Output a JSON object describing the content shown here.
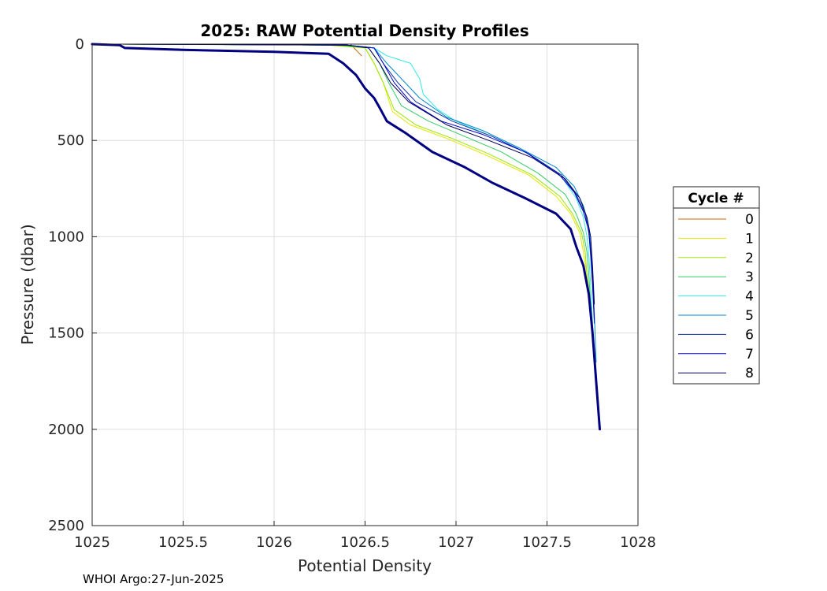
{
  "chart_data": {
    "type": "line",
    "title": "2025: RAW Potential Density Profiles",
    "xlabel": "Potential Density",
    "ylabel": "Pressure (dbar)",
    "xlim": [
      1025,
      1028
    ],
    "ylim": [
      0,
      2500
    ],
    "y_reversed": true,
    "grid": true,
    "x_ticks": [
      1025,
      1025.5,
      1026,
      1026.5,
      1027,
      1027.5,
      1028
    ],
    "x_tick_labels": [
      "1025",
      "1025.5",
      "1026",
      "1026.5",
      "1027",
      "1027.5",
      "1028"
    ],
    "y_ticks": [
      0,
      500,
      1000,
      1500,
      2000,
      2500
    ],
    "y_tick_labels": [
      "0",
      "500",
      "1000",
      "1500",
      "2000",
      "2500"
    ],
    "legend": {
      "title": "Cycle #",
      "placement": "right-outside"
    },
    "series": [
      {
        "name": "0",
        "color": "#cc6600",
        "width": 1,
        "points": [
          [
            1026.42,
            0
          ],
          [
            1026.44,
            20
          ],
          [
            1026.46,
            40
          ],
          [
            1026.48,
            60
          ]
        ]
      },
      {
        "name": "1",
        "color": "#e6e600",
        "width": 1,
        "points": [
          [
            1025.15,
            0
          ],
          [
            1026.3,
            5
          ],
          [
            1026.5,
            20
          ],
          [
            1026.55,
            100
          ],
          [
            1026.6,
            200
          ],
          [
            1026.65,
            350
          ],
          [
            1026.75,
            420
          ],
          [
            1026.95,
            490
          ],
          [
            1027.15,
            570
          ],
          [
            1027.4,
            680
          ],
          [
            1027.55,
            790
          ],
          [
            1027.63,
            880
          ],
          [
            1027.68,
            980
          ],
          [
            1027.7,
            1080
          ],
          [
            1027.72,
            1200
          ],
          [
            1027.74,
            1350
          ],
          [
            1027.75,
            1450
          ]
        ]
      },
      {
        "name": "2",
        "color": "#99e600",
        "width": 1,
        "points": [
          [
            1025.15,
            0
          ],
          [
            1026.3,
            5
          ],
          [
            1026.5,
            20
          ],
          [
            1026.55,
            100
          ],
          [
            1026.6,
            200
          ],
          [
            1026.66,
            340
          ],
          [
            1026.78,
            420
          ],
          [
            1026.98,
            490
          ],
          [
            1027.18,
            570
          ],
          [
            1027.42,
            680
          ],
          [
            1027.57,
            790
          ],
          [
            1027.64,
            880
          ],
          [
            1027.69,
            980
          ],
          [
            1027.71,
            1080
          ],
          [
            1027.72,
            1200
          ],
          [
            1027.74,
            1350
          ],
          [
            1027.75,
            1480
          ]
        ]
      },
      {
        "name": "3",
        "color": "#33cc66",
        "width": 1,
        "points": [
          [
            1025.15,
            0
          ],
          [
            1026.35,
            5
          ],
          [
            1026.52,
            20
          ],
          [
            1026.58,
            100
          ],
          [
            1026.63,
            200
          ],
          [
            1026.7,
            320
          ],
          [
            1026.85,
            400
          ],
          [
            1027.05,
            480
          ],
          [
            1027.25,
            560
          ],
          [
            1027.45,
            670
          ],
          [
            1027.6,
            780
          ],
          [
            1027.66,
            880
          ],
          [
            1027.7,
            980
          ],
          [
            1027.72,
            1080
          ],
          [
            1027.73,
            1200
          ],
          [
            1027.74,
            1350
          ],
          [
            1027.75,
            1480
          ]
        ]
      },
      {
        "name": "4",
        "color": "#33e6e6",
        "width": 1,
        "points": [
          [
            1025.15,
            0
          ],
          [
            1026.4,
            5
          ],
          [
            1026.55,
            20
          ],
          [
            1026.62,
            60
          ],
          [
            1026.75,
            100
          ],
          [
            1026.8,
            180
          ],
          [
            1026.82,
            260
          ],
          [
            1026.9,
            340
          ],
          [
            1027.0,
            400
          ],
          [
            1027.2,
            480
          ],
          [
            1027.4,
            570
          ],
          [
            1027.58,
            690
          ],
          [
            1027.66,
            800
          ],
          [
            1027.7,
            900
          ],
          [
            1027.72,
            1000
          ],
          [
            1027.73,
            1100
          ],
          [
            1027.74,
            1250
          ],
          [
            1027.75,
            1450
          ]
        ]
      },
      {
        "name": "5",
        "color": "#0088cc",
        "width": 1,
        "points": [
          [
            1025.15,
            0
          ],
          [
            1026.4,
            5
          ],
          [
            1026.55,
            20
          ],
          [
            1026.62,
            100
          ],
          [
            1026.7,
            180
          ],
          [
            1026.8,
            280
          ],
          [
            1026.95,
            380
          ],
          [
            1027.15,
            450
          ],
          [
            1027.35,
            540
          ],
          [
            1027.55,
            640
          ],
          [
            1027.65,
            740
          ],
          [
            1027.7,
            840
          ],
          [
            1027.73,
            950
          ],
          [
            1027.74,
            1050
          ],
          [
            1027.75,
            1200
          ],
          [
            1027.76,
            1400
          ],
          [
            1027.77,
            1650
          ]
        ]
      },
      {
        "name": "6",
        "color": "#1133aa",
        "width": 1,
        "points": [
          [
            1025.15,
            0
          ],
          [
            1026.4,
            5
          ],
          [
            1026.55,
            20
          ],
          [
            1026.6,
            100
          ],
          [
            1026.68,
            200
          ],
          [
            1026.78,
            300
          ],
          [
            1026.98,
            400
          ],
          [
            1027.2,
            480
          ],
          [
            1027.4,
            570
          ],
          [
            1027.58,
            680
          ],
          [
            1027.66,
            780
          ],
          [
            1027.71,
            880
          ],
          [
            1027.73,
            980
          ],
          [
            1027.74,
            1100
          ],
          [
            1027.75,
            1250
          ],
          [
            1027.76,
            1450
          ]
        ]
      },
      {
        "name": "7",
        "color": "#0000cc",
        "width": 1,
        "points": [
          [
            1025.15,
            0
          ],
          [
            1026.4,
            5
          ],
          [
            1026.55,
            20
          ],
          [
            1026.6,
            100
          ],
          [
            1026.66,
            200
          ],
          [
            1026.75,
            300
          ],
          [
            1026.92,
            400
          ],
          [
            1027.15,
            470
          ],
          [
            1027.38,
            560
          ],
          [
            1027.56,
            670
          ],
          [
            1027.65,
            770
          ],
          [
            1027.7,
            870
          ],
          [
            1027.73,
            970
          ],
          [
            1027.74,
            1080
          ],
          [
            1027.75,
            1230
          ],
          [
            1027.76,
            1430
          ]
        ]
      },
      {
        "name": "8",
        "color": "#000055",
        "width": 1,
        "points": [
          [
            1025.15,
            0
          ],
          [
            1026.4,
            5
          ],
          [
            1026.52,
            20
          ],
          [
            1026.58,
            100
          ],
          [
            1026.64,
            200
          ],
          [
            1026.74,
            300
          ],
          [
            1026.95,
            420
          ],
          [
            1027.18,
            500
          ],
          [
            1027.42,
            590
          ],
          [
            1027.6,
            700
          ],
          [
            1027.68,
            800
          ],
          [
            1027.72,
            900
          ],
          [
            1027.74,
            1000
          ],
          [
            1027.75,
            1150
          ],
          [
            1027.76,
            1350
          ]
        ]
      },
      {
        "name": "",
        "color": "#000080",
        "width": 3,
        "points": [
          [
            1025.0,
            0
          ],
          [
            1025.15,
            5
          ],
          [
            1025.18,
            20
          ],
          [
            1025.5,
            30
          ],
          [
            1026.0,
            40
          ],
          [
            1026.3,
            50
          ],
          [
            1026.38,
            100
          ],
          [
            1026.45,
            160
          ],
          [
            1026.5,
            230
          ],
          [
            1026.55,
            280
          ],
          [
            1026.58,
            330
          ],
          [
            1026.62,
            400
          ],
          [
            1026.72,
            460
          ],
          [
            1026.87,
            560
          ],
          [
            1027.05,
            640
          ],
          [
            1027.2,
            720
          ],
          [
            1027.38,
            800
          ],
          [
            1027.55,
            880
          ],
          [
            1027.63,
            960
          ],
          [
            1027.66,
            1050
          ],
          [
            1027.7,
            1150
          ],
          [
            1027.73,
            1300
          ],
          [
            1027.75,
            1500
          ],
          [
            1027.77,
            1750
          ],
          [
            1027.79,
            2000
          ]
        ]
      }
    ]
  },
  "footer": {
    "text": "WHOI Argo:27-Jun-2025"
  }
}
